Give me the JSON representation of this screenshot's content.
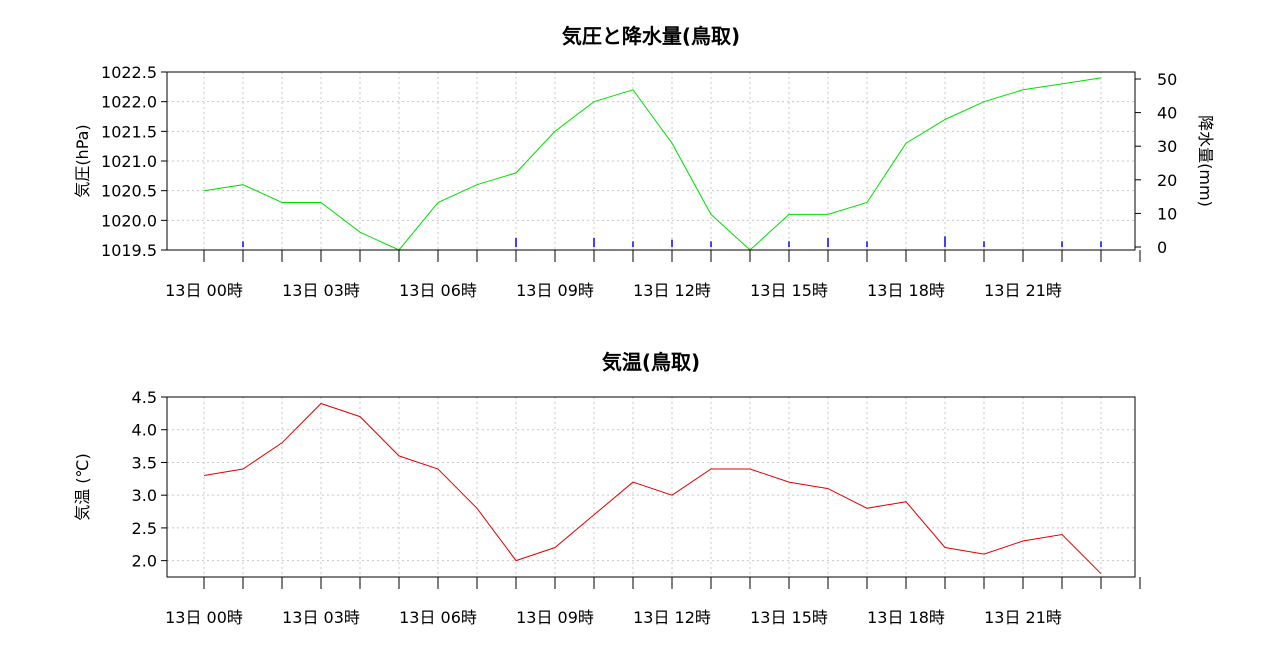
{
  "chart_data": [
    {
      "type": "line",
      "title": "気圧と降水量(鳥取)",
      "ylabel": "気圧(hPa)",
      "y2label": "降水量(mm)",
      "ylim": [
        1019.5,
        1022.5
      ],
      "y2lim": [
        0,
        50
      ],
      "yticks": [
        "1019.5",
        "1020.0",
        "1020.5",
        "1021.0",
        "1021.5",
        "1022.0",
        "1022.5"
      ],
      "y2ticks": [
        "0",
        "10",
        "20",
        "30",
        "40",
        "50"
      ],
      "xtick_labels": [
        "13日 00時",
        "13日 03時",
        "13日 06時",
        "13日 09時",
        "13日 12時",
        "13日 15時",
        "13日 18時",
        "13日 21時"
      ],
      "grid": true,
      "series": [
        {
          "color": "#00e000",
          "values": [
            1020.5,
            1020.6,
            1020.3,
            1020.3,
            1019.8,
            1019.5,
            1020.3,
            1020.6,
            1020.8,
            1021.5,
            1022.0,
            1022.2,
            1021.3,
            1020.1,
            1019.5,
            1020.1,
            1020.1,
            1020.3,
            1021.3,
            1021.7,
            1022.0,
            1022.2,
            1022.3,
            1022.4
          ]
        },
        {
          "axis": "right",
          "kind": "bar",
          "color": "#0000ff",
          "values": [
            0,
            0.5,
            0,
            0,
            0,
            0,
            0,
            0,
            1.5,
            0,
            1.5,
            0.5,
            1,
            0.5,
            0,
            0.5,
            1.5,
            0.5,
            0,
            2,
            0.5,
            0,
            0.5,
            0.5
          ]
        }
      ]
    },
    {
      "type": "line",
      "title": "気温(鳥取)",
      "ylabel": "気温 (℃)",
      "ylim": [
        1.75,
        4.5
      ],
      "yticks": [
        "2.0",
        "2.5",
        "3.0",
        "3.5",
        "4.0",
        "4.5"
      ],
      "xtick_labels": [
        "13日 00時",
        "13日 03時",
        "13日 06時",
        "13日 09時",
        "13日 12時",
        "13日 15時",
        "13日 18時",
        "13日 21時"
      ],
      "grid": true,
      "series": [
        {
          "color": "#e00000",
          "values": [
            3.3,
            3.4,
            3.8,
            4.4,
            4.2,
            3.6,
            3.4,
            2.8,
            2.0,
            2.2,
            2.7,
            3.2,
            3.0,
            3.4,
            3.4,
            3.2,
            3.1,
            2.8,
            2.9,
            2.2,
            2.1,
            2.3,
            2.4,
            1.8
          ]
        }
      ]
    }
  ]
}
